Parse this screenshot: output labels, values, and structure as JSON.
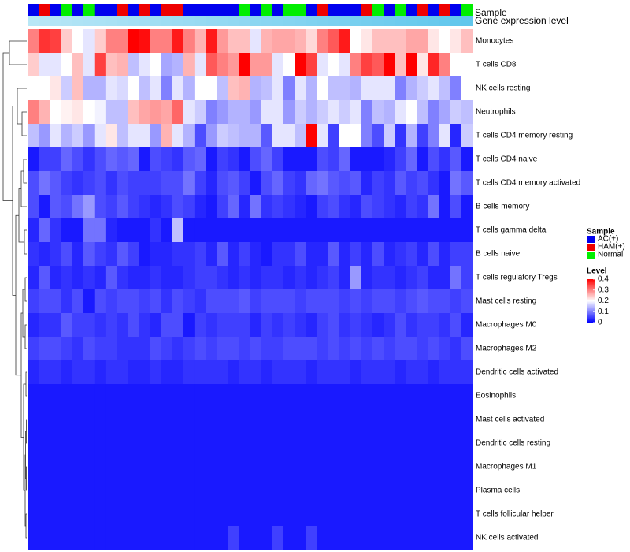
{
  "chart_data": {
    "type": "heatmap",
    "title": "",
    "annotation_tracks": [
      {
        "name": "Sample",
        "kind": "categorical"
      },
      {
        "name": "Gene expression level",
        "kind": "continuous"
      }
    ],
    "rows": [
      "Monocytes",
      "T cells CD8",
      "NK cells resting",
      "Neutrophils",
      "T cells CD4 memory resting",
      "T cells CD4 naive",
      "T cells CD4 memory activated",
      "B cells memory",
      "T cells gamma delta",
      "B cells naive",
      "T cells regulatory  Tregs",
      "Mast cells resting",
      "Macrophages M0",
      "Macrophages M2",
      "Dendritic cells activated",
      "Eosinophils",
      "Mast cells activated",
      "Dendritic cells resting",
      "Macrophages M1",
      "Plasma cells",
      "T cells follicular helper",
      "NK cells activated"
    ],
    "sample_groups": [
      "AC(+)",
      "HAM(+)",
      "AC(+)",
      "Normal",
      "AC(+)",
      "Normal",
      "AC(+)",
      "AC(+)",
      "HAM(+)",
      "AC(+)",
      "HAM(+)",
      "AC(+)",
      "HAM(+)",
      "HAM(+)",
      "AC(+)",
      "AC(+)",
      "AC(+)",
      "AC(+)",
      "AC(+)",
      "Normal",
      "AC(+)",
      "Normal",
      "AC(+)",
      "Normal",
      "Normal",
      "AC(+)",
      "HAM(+)",
      "AC(+)",
      "AC(+)",
      "AC(+)",
      "HAM(+)",
      "Normal",
      "AC(+)",
      "Normal",
      "AC(+)",
      "HAM(+)",
      "AC(+)",
      "HAM(+)",
      "AC(+)",
      "Normal"
    ],
    "expression_level": [
      0.06,
      0.08,
      0.1,
      0.12,
      0.14,
      0.16,
      0.18,
      0.2,
      0.22,
      0.24,
      0.26,
      0.28,
      0.3,
      0.32,
      0.34,
      0.36,
      0.38,
      0.4,
      0.42,
      0.44,
      0.46,
      0.48,
      0.5,
      0.52,
      0.54,
      0.56,
      0.58,
      0.6,
      0.62,
      0.64,
      0.66,
      0.68,
      0.7,
      0.72,
      0.74,
      0.76,
      0.78,
      0.8,
      0.82,
      0.84
    ],
    "values": [
      [
        0.3,
        0.36,
        0.35,
        0.24,
        0.2,
        0.18,
        0.24,
        0.3,
        0.3,
        0.4,
        0.39,
        0.3,
        0.3,
        0.38,
        0.3,
        0.26,
        0.38,
        0.28,
        0.25,
        0.25,
        0.18,
        0.26,
        0.27,
        0.27,
        0.26,
        0.23,
        0.3,
        0.33,
        0.38,
        0.2,
        0.22,
        0.25,
        0.25,
        0.25,
        0.27,
        0.27,
        0.22,
        0.2,
        0.22,
        0.25
      ],
      [
        0.24,
        0.18,
        0.18,
        0.2,
        0.25,
        0.18,
        0.35,
        0.25,
        0.26,
        0.15,
        0.18,
        0.2,
        0.13,
        0.14,
        0.26,
        0.18,
        0.33,
        0.3,
        0.28,
        0.4,
        0.28,
        0.28,
        0.18,
        0.2,
        0.42,
        0.35,
        0.18,
        0.2,
        0.18,
        0.3,
        0.35,
        0.33,
        0.4,
        0.25,
        0.4,
        0.22,
        0.37,
        0.3,
        0.2,
        0.2
      ],
      [
        0.2,
        0.2,
        0.22,
        0.16,
        0.25,
        0.14,
        0.14,
        0.18,
        0.17,
        0.2,
        0.15,
        0.18,
        0.1,
        0.18,
        0.14,
        0.2,
        0.2,
        0.15,
        0.25,
        0.26,
        0.14,
        0.15,
        0.18,
        0.1,
        0.18,
        0.14,
        0.2,
        0.15,
        0.15,
        0.14,
        0.18,
        0.18,
        0.18,
        0.1,
        0.14,
        0.16,
        0.18,
        0.15,
        0.1,
        0.2
      ],
      [
        0.3,
        0.26,
        0.2,
        0.21,
        0.22,
        0.2,
        0.19,
        0.15,
        0.15,
        0.25,
        0.27,
        0.28,
        0.27,
        0.32,
        0.18,
        0.16,
        0.1,
        0.12,
        0.14,
        0.14,
        0.12,
        0.18,
        0.18,
        0.12,
        0.16,
        0.14,
        0.16,
        0.18,
        0.16,
        0.18,
        0.1,
        0.15,
        0.14,
        0.18,
        0.2,
        0.15,
        0.1,
        0.13,
        0.16,
        0.15
      ],
      [
        0.15,
        0.12,
        0.18,
        0.14,
        0.16,
        0.12,
        0.18,
        0.22,
        0.15,
        0.18,
        0.18,
        0.12,
        0.26,
        0.18,
        0.14,
        0.06,
        0.12,
        0.16,
        0.15,
        0.14,
        0.14,
        0.07,
        0.18,
        0.18,
        0.15,
        0.4,
        0.18,
        0.05,
        0.2,
        0.2,
        0.1,
        0.06,
        0.16,
        0.04,
        0.14,
        0.05,
        0.1,
        0.18,
        0.03,
        0.16
      ],
      [
        0.02,
        0.05,
        0.05,
        0.08,
        0.06,
        0.04,
        0.06,
        0.08,
        0.07,
        0.08,
        0.02,
        0.06,
        0.05,
        0.04,
        0.07,
        0.08,
        0.02,
        0.05,
        0.04,
        0.02,
        0.06,
        0.08,
        0.05,
        0.02,
        0.02,
        0.02,
        0.06,
        0.05,
        0.08,
        0.02,
        0.02,
        0.02,
        0.03,
        0.05,
        0.08,
        0.02,
        0.06,
        0.04,
        0.07,
        0.02
      ],
      [
        0.06,
        0.09,
        0.07,
        0.05,
        0.04,
        0.05,
        0.06,
        0.04,
        0.06,
        0.05,
        0.05,
        0.05,
        0.06,
        0.06,
        0.09,
        0.05,
        0.03,
        0.06,
        0.07,
        0.05,
        0.02,
        0.06,
        0.08,
        0.05,
        0.04,
        0.08,
        0.09,
        0.07,
        0.06,
        0.07,
        0.03,
        0.05,
        0.04,
        0.07,
        0.05,
        0.06,
        0.04,
        0.02,
        0.09,
        0.07
      ],
      [
        0.06,
        0.02,
        0.07,
        0.06,
        0.09,
        0.12,
        0.06,
        0.05,
        0.07,
        0.05,
        0.04,
        0.03,
        0.04,
        0.06,
        0.05,
        0.03,
        0.02,
        0.05,
        0.08,
        0.03,
        0.09,
        0.04,
        0.05,
        0.04,
        0.03,
        0.02,
        0.05,
        0.06,
        0.04,
        0.03,
        0.06,
        0.05,
        0.04,
        0.03,
        0.05,
        0.04,
        0.09,
        0.02,
        0.06,
        0.02
      ],
      [
        0.03,
        0.08,
        0.04,
        0.02,
        0.02,
        0.09,
        0.09,
        0.03,
        0.02,
        0.02,
        0.02,
        0.04,
        0.02,
        0.15,
        0.02,
        0.02,
        0.02,
        0.02,
        0.02,
        0.02,
        0.02,
        0.02,
        0.02,
        0.02,
        0.02,
        0.02,
        0.02,
        0.02,
        0.02,
        0.02,
        0.02,
        0.02,
        0.02,
        0.02,
        0.02,
        0.02,
        0.02,
        0.02,
        0.02,
        0.02
      ],
      [
        0.04,
        0.03,
        0.04,
        0.06,
        0.03,
        0.07,
        0.05,
        0.04,
        0.07,
        0.05,
        0.02,
        0.03,
        0.03,
        0.04,
        0.04,
        0.05,
        0.03,
        0.07,
        0.03,
        0.05,
        0.03,
        0.02,
        0.04,
        0.04,
        0.06,
        0.03,
        0.03,
        0.07,
        0.03,
        0.05,
        0.03,
        0.06,
        0.03,
        0.04,
        0.05,
        0.03,
        0.06,
        0.03,
        0.05,
        0.05
      ],
      [
        0.03,
        0.07,
        0.03,
        0.04,
        0.03,
        0.04,
        0.03,
        0.07,
        0.04,
        0.03,
        0.03,
        0.04,
        0.03,
        0.03,
        0.04,
        0.05,
        0.05,
        0.04,
        0.03,
        0.04,
        0.03,
        0.04,
        0.04,
        0.03,
        0.04,
        0.03,
        0.04,
        0.05,
        0.03,
        0.12,
        0.03,
        0.04,
        0.04,
        0.03,
        0.04,
        0.05,
        0.03,
        0.03,
        0.09,
        0.05
      ],
      [
        0.05,
        0.06,
        0.06,
        0.04,
        0.06,
        0.02,
        0.06,
        0.05,
        0.06,
        0.06,
        0.05,
        0.06,
        0.04,
        0.06,
        0.05,
        0.04,
        0.06,
        0.06,
        0.06,
        0.07,
        0.05,
        0.06,
        0.06,
        0.06,
        0.05,
        0.06,
        0.06,
        0.06,
        0.05,
        0.06,
        0.05,
        0.06,
        0.06,
        0.05,
        0.06,
        0.07,
        0.06,
        0.06,
        0.05,
        0.06
      ],
      [
        0.03,
        0.04,
        0.04,
        0.07,
        0.05,
        0.05,
        0.04,
        0.05,
        0.04,
        0.06,
        0.04,
        0.03,
        0.06,
        0.06,
        0.02,
        0.05,
        0.04,
        0.05,
        0.05,
        0.05,
        0.03,
        0.05,
        0.04,
        0.05,
        0.04,
        0.03,
        0.05,
        0.06,
        0.04,
        0.05,
        0.04,
        0.03,
        0.04,
        0.06,
        0.04,
        0.05,
        0.05,
        0.04,
        0.06,
        0.03
      ],
      [
        0.05,
        0.06,
        0.06,
        0.05,
        0.04,
        0.06,
        0.05,
        0.05,
        0.04,
        0.04,
        0.04,
        0.06,
        0.05,
        0.04,
        0.05,
        0.06,
        0.05,
        0.06,
        0.06,
        0.05,
        0.06,
        0.05,
        0.05,
        0.06,
        0.06,
        0.06,
        0.05,
        0.06,
        0.05,
        0.06,
        0.05,
        0.06,
        0.05,
        0.06,
        0.06,
        0.05,
        0.06,
        0.05,
        0.04,
        0.06
      ],
      [
        0.03,
        0.04,
        0.04,
        0.03,
        0.04,
        0.04,
        0.03,
        0.04,
        0.04,
        0.03,
        0.03,
        0.04,
        0.03,
        0.03,
        0.04,
        0.04,
        0.04,
        0.04,
        0.03,
        0.04,
        0.04,
        0.03,
        0.04,
        0.04,
        0.04,
        0.03,
        0.04,
        0.04,
        0.04,
        0.03,
        0.04,
        0.04,
        0.04,
        0.03,
        0.04,
        0.04,
        0.03,
        0.04,
        0.04,
        0.04
      ],
      [
        0.02,
        0.02,
        0.02,
        0.02,
        0.02,
        0.02,
        0.02,
        0.02,
        0.02,
        0.02,
        0.02,
        0.02,
        0.02,
        0.02,
        0.02,
        0.02,
        0.02,
        0.02,
        0.02,
        0.02,
        0.02,
        0.02,
        0.02,
        0.02,
        0.02,
        0.02,
        0.02,
        0.02,
        0.02,
        0.02,
        0.02,
        0.02,
        0.02,
        0.02,
        0.02,
        0.02,
        0.02,
        0.02,
        0.02,
        0.02
      ],
      [
        0.02,
        0.02,
        0.02,
        0.02,
        0.02,
        0.02,
        0.02,
        0.02,
        0.02,
        0.02,
        0.02,
        0.02,
        0.02,
        0.02,
        0.02,
        0.02,
        0.02,
        0.02,
        0.02,
        0.02,
        0.02,
        0.02,
        0.02,
        0.02,
        0.02,
        0.02,
        0.02,
        0.02,
        0.02,
        0.02,
        0.02,
        0.02,
        0.02,
        0.02,
        0.02,
        0.02,
        0.02,
        0.02,
        0.02,
        0.02
      ],
      [
        0.02,
        0.02,
        0.02,
        0.02,
        0.02,
        0.02,
        0.02,
        0.02,
        0.02,
        0.02,
        0.02,
        0.02,
        0.02,
        0.02,
        0.02,
        0.02,
        0.02,
        0.02,
        0.02,
        0.02,
        0.02,
        0.02,
        0.02,
        0.02,
        0.02,
        0.02,
        0.02,
        0.02,
        0.02,
        0.02,
        0.02,
        0.02,
        0.02,
        0.02,
        0.02,
        0.02,
        0.02,
        0.02,
        0.02,
        0.02
      ],
      [
        0.02,
        0.02,
        0.02,
        0.02,
        0.02,
        0.02,
        0.02,
        0.02,
        0.02,
        0.02,
        0.02,
        0.02,
        0.02,
        0.02,
        0.02,
        0.02,
        0.02,
        0.02,
        0.02,
        0.02,
        0.02,
        0.02,
        0.02,
        0.02,
        0.02,
        0.02,
        0.02,
        0.02,
        0.02,
        0.02,
        0.02,
        0.02,
        0.02,
        0.02,
        0.02,
        0.02,
        0.02,
        0.02,
        0.02,
        0.02
      ],
      [
        0.02,
        0.02,
        0.02,
        0.02,
        0.02,
        0.02,
        0.02,
        0.02,
        0.02,
        0.02,
        0.02,
        0.02,
        0.02,
        0.02,
        0.02,
        0.02,
        0.02,
        0.02,
        0.02,
        0.02,
        0.02,
        0.02,
        0.02,
        0.02,
        0.02,
        0.02,
        0.02,
        0.02,
        0.02,
        0.02,
        0.02,
        0.02,
        0.02,
        0.02,
        0.02,
        0.02,
        0.02,
        0.02,
        0.02,
        0.02
      ],
      [
        0.02,
        0.02,
        0.02,
        0.02,
        0.02,
        0.02,
        0.02,
        0.02,
        0.02,
        0.02,
        0.02,
        0.02,
        0.02,
        0.02,
        0.02,
        0.02,
        0.02,
        0.02,
        0.02,
        0.02,
        0.02,
        0.02,
        0.02,
        0.02,
        0.02,
        0.02,
        0.02,
        0.02,
        0.02,
        0.02,
        0.02,
        0.02,
        0.02,
        0.02,
        0.02,
        0.02,
        0.02,
        0.02,
        0.02,
        0.02
      ],
      [
        0.02,
        0.02,
        0.02,
        0.02,
        0.02,
        0.02,
        0.02,
        0.02,
        0.02,
        0.02,
        0.02,
        0.02,
        0.02,
        0.02,
        0.02,
        0.02,
        0.02,
        0.02,
        0.05,
        0.02,
        0.02,
        0.02,
        0.05,
        0.02,
        0.02,
        0.05,
        0.02,
        0.02,
        0.02,
        0.02,
        0.02,
        0.02,
        0.02,
        0.02,
        0.02,
        0.02,
        0.02,
        0.02,
        0.02,
        0.02
      ]
    ],
    "legend_sample": {
      "title": "Sample",
      "entries": [
        {
          "label": "AC(+)",
          "color": "#0000ee"
        },
        {
          "label": "HAM(+)",
          "color": "#ee0000"
        },
        {
          "label": "Normal",
          "color": "#00ee00"
        }
      ]
    },
    "legend_level": {
      "title": "Level",
      "ticks": [
        "0.4",
        "0.3",
        "0.2",
        "0.1",
        "0"
      ],
      "range": [
        0,
        0.4
      ],
      "colors": {
        "low": "#0000ff",
        "mid": "#ffffff",
        "high": "#ff0000"
      }
    },
    "track_colors": {
      "expression_low": "#bfe9f7",
      "expression_high": "#4fc0ea"
    }
  }
}
